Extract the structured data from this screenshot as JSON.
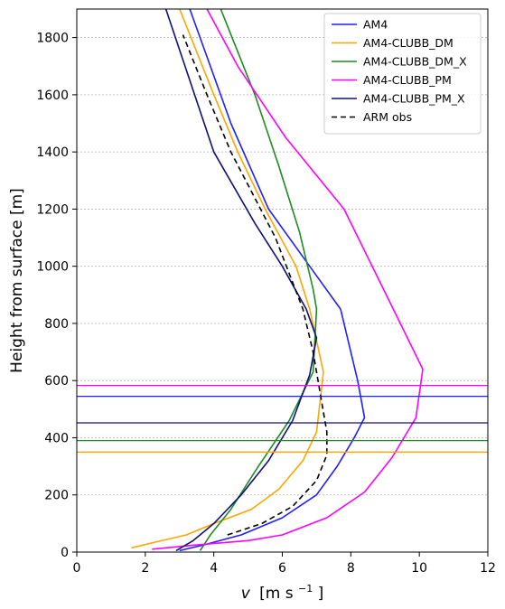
{
  "chart_data": {
    "type": "line",
    "title": "",
    "xlabel_var": "v",
    "xlabel_units": "[m s",
    "xlabel_exp": "−1",
    "xlabel_close": "]",
    "ylabel": "Height from surface [m]",
    "xlim": [
      0,
      12
    ],
    "ylim": [
      0,
      1900
    ],
    "xticks": [
      0,
      2,
      4,
      6,
      8,
      10,
      12
    ],
    "yticks": [
      0,
      200,
      400,
      600,
      800,
      1000,
      1200,
      1400,
      1600,
      1800
    ],
    "grid": "horizontal dotted",
    "legend_position": "top-right",
    "series": [
      {
        "name": "AM4",
        "color": "#1f1fff",
        "dash": "solid",
        "x": [
          3.0,
          3.7,
          4.8,
          6.0,
          7.0,
          7.6,
          8.1,
          8.4,
          8.2,
          7.7,
          6.8,
          5.6,
          4.5,
          3.3
        ],
        "y": [
          5,
          25,
          60,
          120,
          200,
          300,
          400,
          470,
          600,
          850,
          1000,
          1200,
          1500,
          1900
        ],
        "pbl_height": 545
      },
      {
        "name": "AM4-CLUBB_DM",
        "color": "#ffa500",
        "dash": "solid",
        "x": [
          1.6,
          2.3,
          3.2,
          4.0,
          5.1,
          5.9,
          6.6,
          7.0,
          7.2,
          6.8,
          6.4,
          5.5,
          4.7,
          4.0,
          3.0
        ],
        "y": [
          15,
          35,
          60,
          100,
          150,
          220,
          320,
          420,
          630,
          850,
          1000,
          1200,
          1400,
          1600,
          1900
        ],
        "pbl_height": 350
      },
      {
        "name": "AM4-CLUBB_DM_X",
        "color": "#1e8c1e",
        "dash": "solid",
        "x": [
          3.6,
          3.9,
          4.5,
          5.3,
          6.2,
          6.9,
          7.0,
          6.9,
          6.5,
          5.9,
          5.2,
          4.2
        ],
        "y": [
          5,
          60,
          150,
          300,
          460,
          630,
          850,
          920,
          1120,
          1350,
          1600,
          1900
        ],
        "pbl_height": 390
      },
      {
        "name": "AM4-CLUBB_PM",
        "color": "#ff00ff",
        "dash": "solid",
        "x": [
          2.2,
          3.5,
          5.0,
          6.0,
          7.3,
          8.4,
          9.2,
          9.9,
          10.1,
          9.2,
          7.8,
          6.1,
          4.7,
          3.8
        ],
        "y": [
          10,
          25,
          40,
          60,
          120,
          210,
          330,
          470,
          640,
          860,
          1200,
          1450,
          1700,
          1900
        ],
        "pbl_height": 583
      },
      {
        "name": "AM4-CLUBB_PM_X",
        "color": "#10107a",
        "dash": "solid",
        "x": [
          2.9,
          3.4,
          4.0,
          4.8,
          5.6,
          6.3,
          6.8,
          7.0,
          6.7,
          6.0,
          5.2,
          4.0,
          2.6
        ],
        "y": [
          5,
          40,
          100,
          200,
          320,
          460,
          620,
          750,
          850,
          1000,
          1150,
          1400,
          1900
        ],
        "pbl_height": 452
      },
      {
        "name": "ARM obs",
        "color": "#000000",
        "dash": "dashed",
        "x": [
          4.4,
          5.4,
          6.3,
          7.0,
          7.3,
          7.3,
          7.1,
          6.9,
          6.6,
          5.8,
          4.5,
          3.8,
          3.1
        ],
        "y": [
          60,
          100,
          160,
          250,
          340,
          420,
          560,
          700,
          850,
          1100,
          1400,
          1600,
          1810
        ]
      }
    ]
  }
}
